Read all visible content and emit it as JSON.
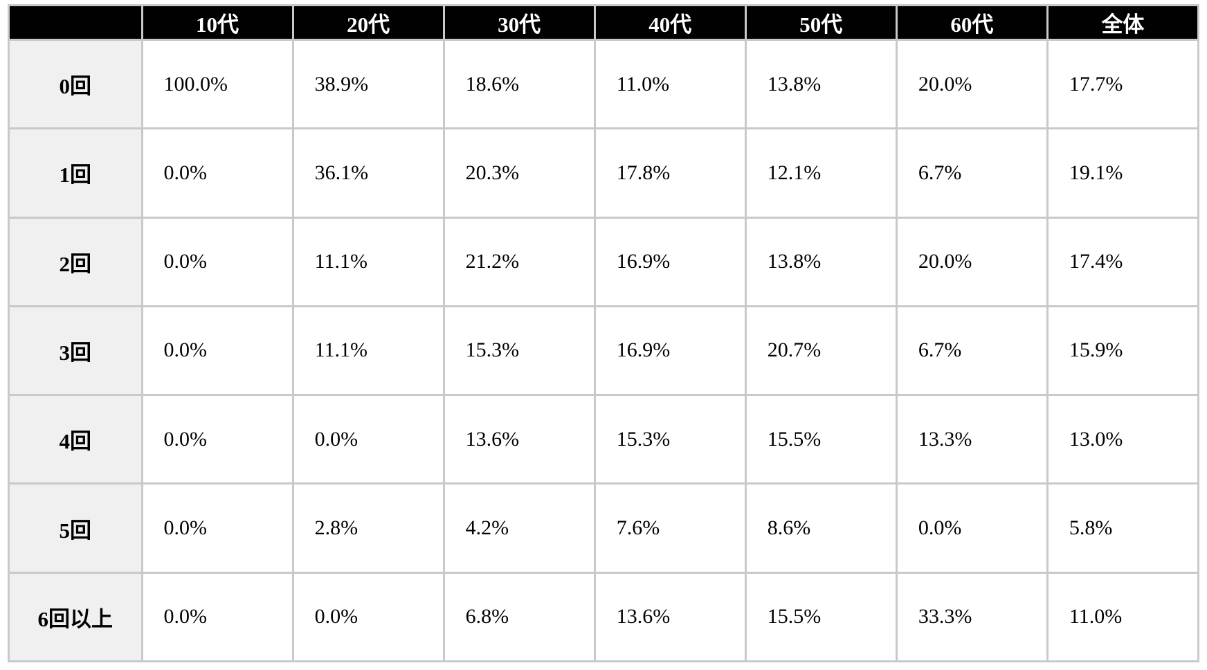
{
  "table": {
    "corner_label": "",
    "columns": [
      "10代",
      "20代",
      "30代",
      "40代",
      "50代",
      "60代",
      "全体"
    ],
    "rows": [
      {
        "label": "0回",
        "values": [
          "100.0%",
          "38.9%",
          "18.6%",
          "11.0%",
          "13.8%",
          "20.0%",
          "17.7%"
        ]
      },
      {
        "label": "1回",
        "values": [
          "0.0%",
          "36.1%",
          "20.3%",
          "17.8%",
          "12.1%",
          "6.7%",
          "19.1%"
        ]
      },
      {
        "label": "2回",
        "values": [
          "0.0%",
          "11.1%",
          "21.2%",
          "16.9%",
          "13.8%",
          "20.0%",
          "17.4%"
        ]
      },
      {
        "label": "3回",
        "values": [
          "0.0%",
          "11.1%",
          "15.3%",
          "16.9%",
          "20.7%",
          "6.7%",
          "15.9%"
        ]
      },
      {
        "label": "4回",
        "values": [
          "0.0%",
          "0.0%",
          "13.6%",
          "15.3%",
          "15.5%",
          "13.3%",
          "13.0%"
        ]
      },
      {
        "label": "5回",
        "values": [
          "0.0%",
          "2.8%",
          "4.2%",
          "7.6%",
          "8.6%",
          "0.0%",
          "5.8%"
        ]
      },
      {
        "label": "6回以上",
        "values": [
          "0.0%",
          "0.0%",
          "6.8%",
          "13.6%",
          "15.5%",
          "33.3%",
          "11.0%"
        ]
      }
    ],
    "colors": {
      "header_bg": "#010101",
      "header_text": "#ffffff",
      "row_label_bg": "#f0f0f0",
      "cell_bg": "#ffffff",
      "border": "#c9c9c9",
      "text": "#000000"
    }
  },
  "chart_data": {
    "type": "table",
    "title": "",
    "columns": [
      "10代",
      "20代",
      "30代",
      "40代",
      "50代",
      "60代",
      "全体"
    ],
    "row_labels": [
      "0回",
      "1回",
      "2回",
      "3回",
      "4回",
      "5回",
      "6回以上"
    ],
    "series": [
      {
        "name": "10代",
        "values": [
          100.0,
          0.0,
          0.0,
          0.0,
          0.0,
          0.0,
          0.0
        ]
      },
      {
        "name": "20代",
        "values": [
          38.9,
          36.1,
          11.1,
          11.1,
          0.0,
          2.8,
          0.0
        ]
      },
      {
        "name": "30代",
        "values": [
          18.6,
          20.3,
          21.2,
          15.3,
          13.6,
          4.2,
          6.8
        ]
      },
      {
        "name": "40代",
        "values": [
          11.0,
          17.8,
          16.9,
          16.9,
          15.3,
          7.6,
          13.6
        ]
      },
      {
        "name": "50代",
        "values": [
          13.8,
          12.1,
          13.8,
          20.7,
          15.5,
          8.6,
          15.5
        ]
      },
      {
        "name": "60代",
        "values": [
          20.0,
          6.7,
          20.0,
          6.7,
          13.3,
          0.0,
          33.3
        ]
      },
      {
        "name": "全体",
        "values": [
          17.7,
          19.1,
          17.4,
          15.9,
          13.0,
          5.8,
          11.0
        ]
      }
    ],
    "unit": "%"
  }
}
